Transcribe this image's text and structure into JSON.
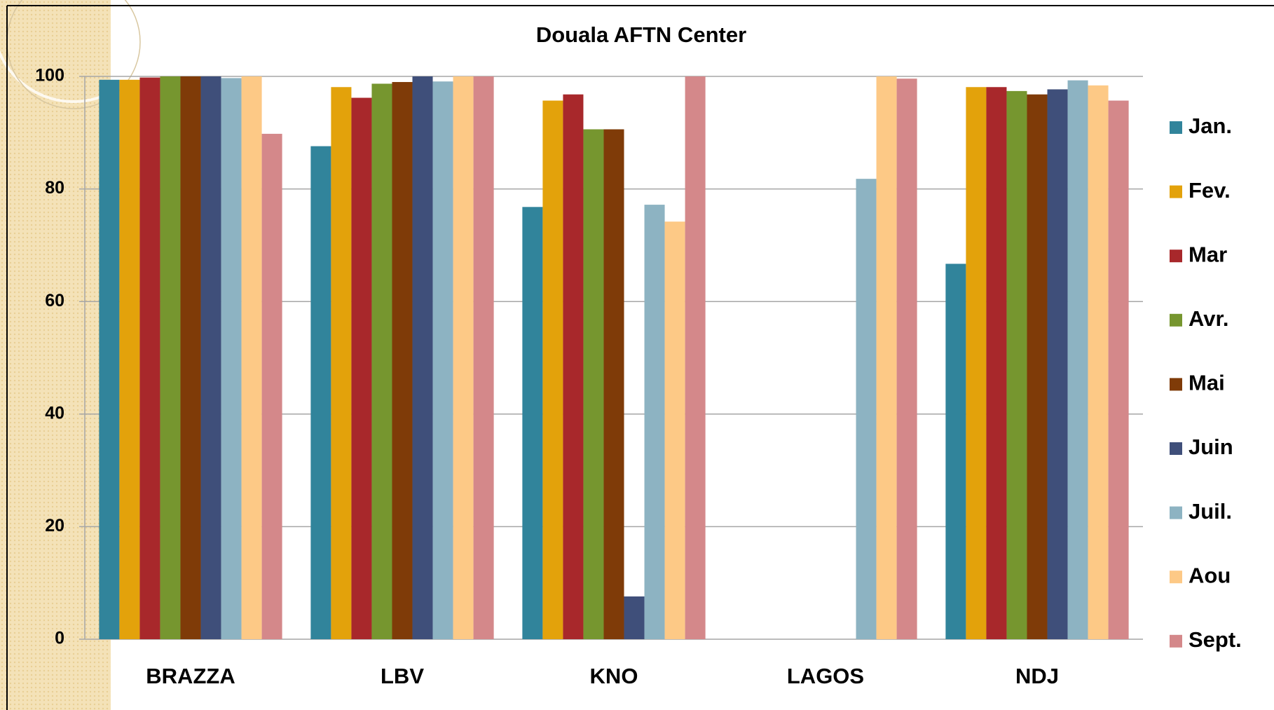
{
  "chart_data": {
    "type": "bar",
    "title": "Douala AFTN Center",
    "categories": [
      "BRAZZA",
      "LBV",
      "KNO",
      "LAGOS",
      "NDJ"
    ],
    "series": [
      {
        "name": "Jan.",
        "color": "#31849b",
        "values": [
          99.4,
          87.6,
          76.8,
          null,
          66.7
        ]
      },
      {
        "name": "Fev.",
        "color": "#e3a20b",
        "values": [
          99.4,
          98.1,
          95.7,
          null,
          98.1
        ]
      },
      {
        "name": "Mar",
        "color": "#a8282b",
        "values": [
          99.8,
          96.2,
          96.8,
          null,
          98.1
        ]
      },
      {
        "name": "Avr.",
        "color": "#76962f",
        "values": [
          100,
          98.7,
          90.6,
          null,
          97.4
        ]
      },
      {
        "name": "Mai",
        "color": "#7f3b08",
        "values": [
          100,
          99,
          90.6,
          null,
          96.8
        ]
      },
      {
        "name": "Juin",
        "color": "#3f4f7a",
        "values": [
          100,
          100,
          7.6,
          null,
          97.7
        ]
      },
      {
        "name": "Juil.",
        "color": "#8db3c2",
        "values": [
          99.7,
          99.1,
          77.2,
          81.8,
          99.3
        ]
      },
      {
        "name": "Aou",
        "color": "#fdc986",
        "values": [
          100,
          100,
          74.2,
          100,
          98.4
        ]
      },
      {
        "name": "Sept.",
        "color": "#d4888a",
        "values": [
          89.8,
          100,
          100,
          99.6,
          95.7
        ]
      }
    ],
    "ylim": [
      0,
      100
    ],
    "yticks": [
      0,
      20,
      40,
      60,
      80,
      100
    ],
    "grid": true,
    "legend": "right"
  }
}
